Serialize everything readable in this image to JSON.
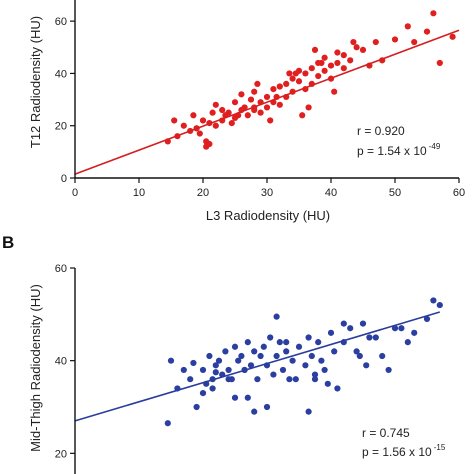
{
  "chart_data": [
    {
      "type": "scatter",
      "title": "",
      "xlabel": "L3 Radiodensity (HU)",
      "ylabel": "T12 Radiodensity (HU)",
      "xlim": [
        0,
        60
      ],
      "ylim": [
        0,
        70
      ],
      "x_ticks": [
        "0",
        "10",
        "20",
        "30",
        "40",
        "50",
        "60"
      ],
      "y_ticks": [
        "0",
        "20",
        "40",
        "60"
      ],
      "grid": false,
      "point_color": "#e02020",
      "line_color": "#d42020",
      "regression": {
        "x": [
          0,
          60
        ],
        "y": [
          1.5,
          56.5
        ]
      },
      "stats": {
        "r_text": "r = 0.920",
        "p_text": "p = 1.54 x 10",
        "p_exponent": "-49"
      },
      "series": [
        {
          "x": [
            14.5,
            15.5,
            16,
            17,
            18,
            18.5,
            19,
            19.5,
            20,
            20.5,
            21,
            21.5,
            22,
            22,
            23,
            23,
            24,
            24.5,
            25,
            25,
            26,
            26,
            27,
            27.5,
            28,
            28,
            29,
            29,
            30,
            30,
            31,
            31,
            32,
            32,
            33,
            33,
            34,
            34,
            35,
            35,
            36,
            36,
            37,
            37,
            38,
            38,
            39,
            39,
            40,
            40,
            41,
            41,
            42,
            42,
            43,
            44,
            45,
            47,
            50,
            52,
            53,
            55,
            56,
            57,
            59,
            21,
            23.5,
            26.5,
            28.5,
            30.5,
            33.5,
            36.5,
            38.5,
            40.5,
            43.5,
            46,
            48,
            31.5,
            35.5,
            25.5,
            20.5,
            19,
            37.5,
            34.5,
            28
          ],
          "y": [
            14,
            22,
            16,
            20,
            18,
            24,
            19,
            17,
            22,
            14,
            21,
            25,
            20,
            28,
            22,
            26,
            25,
            21,
            29,
            23,
            26,
            32,
            24,
            30,
            27,
            33,
            29,
            25,
            31,
            27,
            34,
            29,
            35,
            28,
            36,
            31,
            38,
            33,
            37,
            41,
            40,
            34,
            42,
            36,
            44,
            39,
            41,
            46,
            43,
            38,
            48,
            44,
            42,
            47,
            45,
            50,
            49,
            52,
            53,
            58,
            52,
            56,
            63,
            44,
            54,
            13,
            24,
            27,
            36,
            22,
            40,
            27,
            44,
            33,
            52,
            43,
            45,
            31,
            24,
            24,
            12,
            19,
            49,
            40,
            26
          ]
        }
      ]
    },
    {
      "type": "scatter",
      "panel_label": "B",
      "title": "",
      "xlabel": "",
      "ylabel": "Mid-Thigh Radiodensity (HU)",
      "xlim": [
        0,
        60
      ],
      "ylim": [
        0,
        60
      ],
      "y_ticks": [
        "20",
        "40",
        "60"
      ],
      "grid": false,
      "point_color": "#2a3fa0",
      "line_color": "#2a3c9c",
      "regression": {
        "x": [
          0,
          57
        ],
        "y": [
          27,
          50.5
        ]
      },
      "stats": {
        "r_text": "r = 0.745",
        "p_text": "p = 1.56 x 10",
        "p_exponent": "-15"
      },
      "series": [
        {
          "x": [
            14.5,
            15,
            16,
            17,
            18,
            18.5,
            19,
            20,
            20.5,
            21,
            21.5,
            22,
            22.5,
            23,
            23.5,
            24,
            24.5,
            25,
            25.5,
            26,
            26.5,
            27,
            27.5,
            28,
            28.5,
            29,
            29.5,
            30,
            30.5,
            31,
            31.5,
            32,
            32.5,
            33,
            33.5,
            34,
            35,
            36,
            36.5,
            37,
            37.5,
            38,
            38.5,
            39,
            40,
            40.5,
            41,
            42,
            43,
            44,
            44.5,
            45,
            46,
            48,
            50,
            51,
            52,
            53,
            55,
            56,
            57,
            22,
            27,
            33,
            36.5,
            42,
            47,
            30,
            25,
            20,
            24,
            26.5,
            31.5,
            34.5,
            37.5,
            39.5,
            45.5,
            49,
            21.5,
            28
          ],
          "y": [
            26.5,
            40,
            34,
            38,
            36,
            39.5,
            30,
            38,
            35,
            41,
            36,
            39,
            40,
            37,
            42,
            38,
            36,
            43,
            40,
            41,
            38,
            44,
            39,
            42,
            36,
            41,
            43,
            39,
            45,
            37,
            41,
            44,
            38,
            42,
            36,
            40,
            43,
            39,
            45,
            41,
            37,
            44,
            40,
            38,
            46,
            42,
            34,
            44,
            47,
            42,
            41,
            48,
            45,
            41,
            47,
            47,
            44,
            46,
            49,
            53,
            52,
            37.5,
            32,
            44,
            29,
            48,
            45,
            30,
            32,
            33,
            36,
            38,
            49.5,
            36,
            36,
            35,
            39,
            38,
            34,
            29
          ]
        }
      ]
    }
  ]
}
